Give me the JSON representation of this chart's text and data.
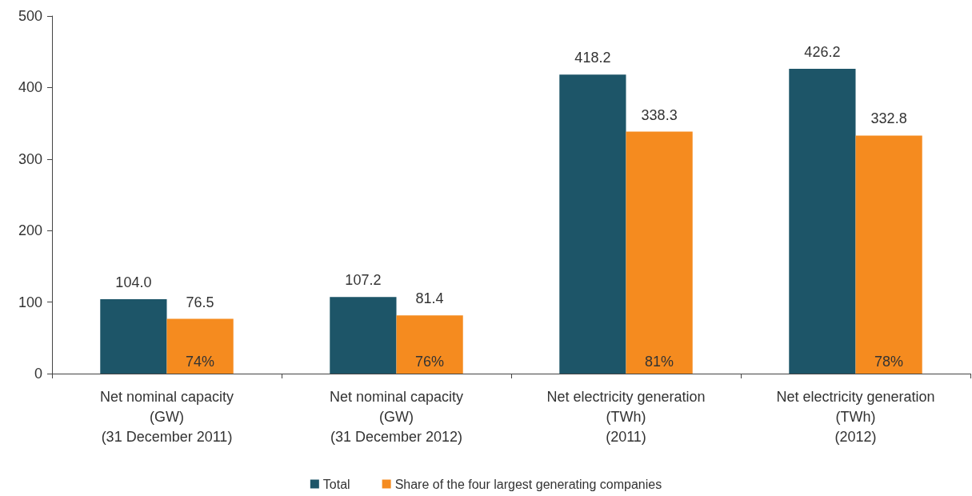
{
  "chart_data": {
    "type": "bar",
    "categories": [
      "Net nominal capacity\n(GW)\n(31 December 2011)",
      "Net nominal capacity\n(GW)\n(31 December 2012)",
      "Net electricity generation\n(TWh)\n(2011)",
      "Net electricity generation\n(TWh)\n(2012)"
    ],
    "series": [
      {
        "name": "Total",
        "color": "#1d5568",
        "values": [
          104.0,
          107.2,
          418.2,
          426.2
        ],
        "value_labels": [
          "104.0",
          "107.2",
          "418.2",
          "426.2"
        ]
      },
      {
        "name": "Share of the four largest generating companies",
        "color": "#f58b1f",
        "values": [
          76.5,
          81.4,
          338.3,
          332.8
        ],
        "value_labels": [
          "76.5",
          "81.4",
          "338.3",
          "332.8"
        ]
      }
    ],
    "ylim": [
      0,
      500
    ],
    "yticks": [
      0,
      100,
      200,
      300,
      400,
      500
    ],
    "grid": false,
    "legend": "bottom",
    "annotations": [
      {
        "text": "74%",
        "x": "Net nominal capacity\n(GW)\n(31 December 2011)",
        "y": 17
      },
      {
        "text": "76%",
        "x": "Net nominal capacity\n(GW)\n(31 December 2012)",
        "y": 17
      },
      {
        "text": "81%",
        "x": "Net electricity generation\n(TWh)\n(2011)",
        "y": 17
      },
      {
        "text": "78%",
        "x": "Net electricity generation\n(TWh)\n(2012)",
        "y": 17
      }
    ]
  }
}
